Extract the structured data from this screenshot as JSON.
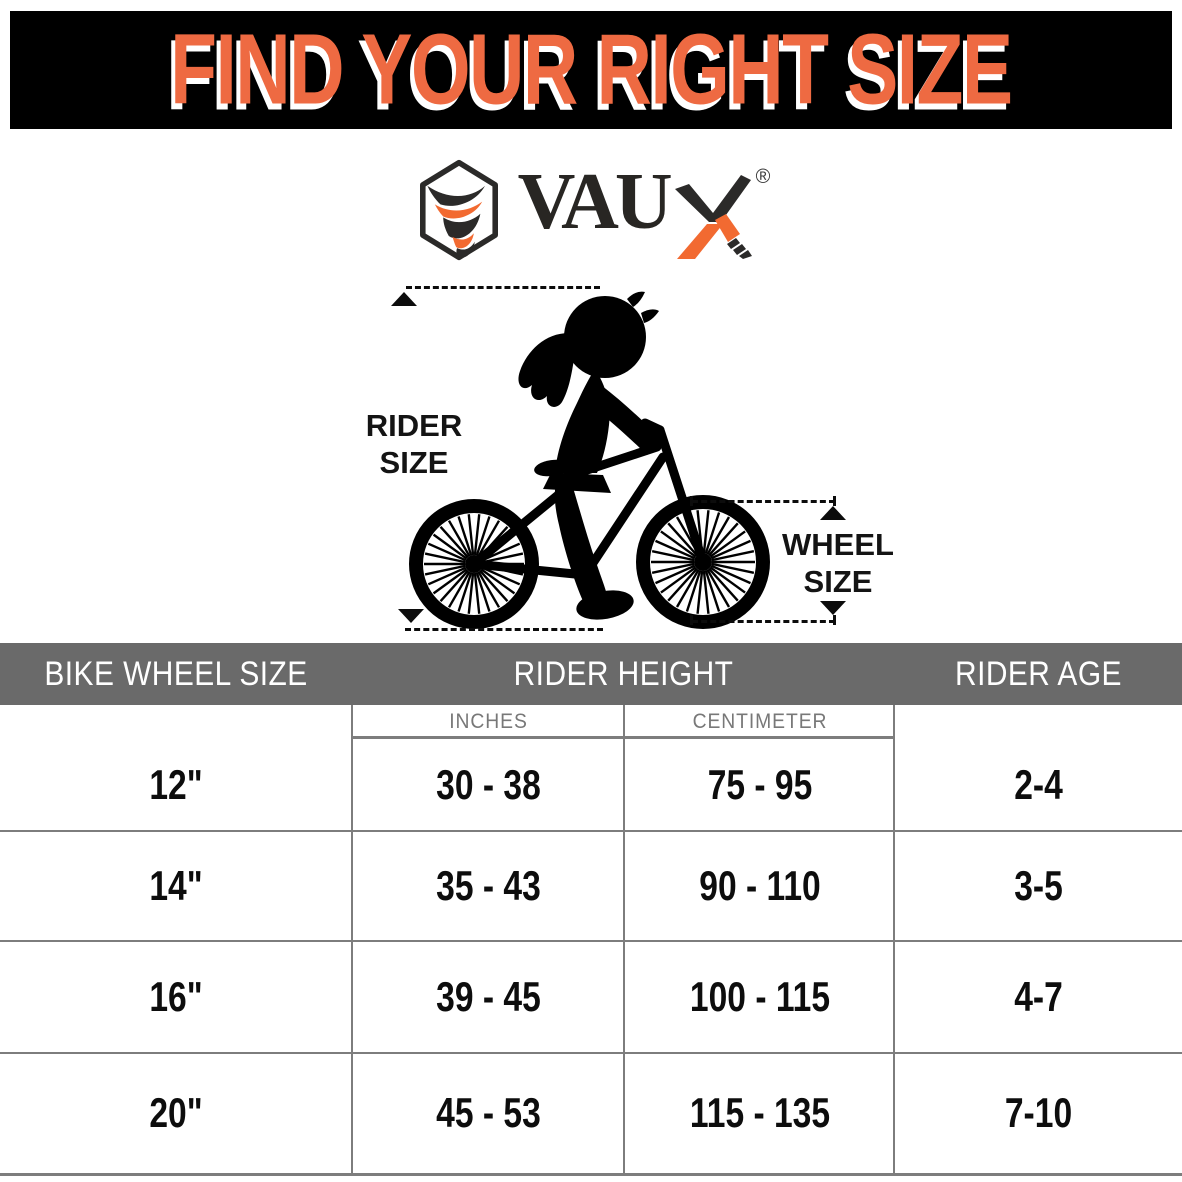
{
  "banner": {
    "title": "FIND YOUR RIGHT SIZE",
    "text_color": "#ee6a42",
    "background": "#000000"
  },
  "logo": {
    "name": "VAUX",
    "text_part": "VAU",
    "stylized_letter": "X",
    "registered_mark": "®",
    "orange": "#f26a31",
    "dark": "#2b2a29"
  },
  "diagram": {
    "rider_size_label": [
      "RIDER",
      "SIZE"
    ],
    "wheel_size_label": [
      "WHEEL",
      "SIZE"
    ]
  },
  "table": {
    "header_background": "#6a6a6a",
    "line_color": "#7d7d7d",
    "columns": [
      "BIKE WHEEL SIZE",
      "RIDER HEIGHT",
      "RIDER AGE"
    ],
    "subcolumns": [
      "INCHES",
      "CENTIMETER"
    ],
    "rows": [
      {
        "wheel_size": "12\"",
        "height_inches": "30 - 38",
        "height_cm": "75 - 95",
        "age": "2-4"
      },
      {
        "wheel_size": "14\"",
        "height_inches": "35 - 43",
        "height_cm": "90 - 110",
        "age": "3-5"
      },
      {
        "wheel_size": "16\"",
        "height_inches": "39 - 45",
        "height_cm": "100 - 115",
        "age": "4-7"
      },
      {
        "wheel_size": "20\"",
        "height_inches": "45 - 53",
        "height_cm": "115 - 135",
        "age": "7-10"
      }
    ]
  },
  "chart_data": {
    "type": "table",
    "title": "FIND YOUR RIGHT SIZE",
    "columns": [
      "BIKE WHEEL SIZE",
      "RIDER HEIGHT INCHES",
      "RIDER HEIGHT CENTIMETER",
      "RIDER AGE"
    ],
    "rows": [
      [
        "12\"",
        "30 - 38",
        "75 - 95",
        "2-4"
      ],
      [
        "14\"",
        "35 - 43",
        "90 - 110",
        "3-5"
      ],
      [
        "16\"",
        "39 - 45",
        "100 - 115",
        "4-7"
      ],
      [
        "20\"",
        "45 - 53",
        "115 - 135",
        "7-10"
      ]
    ]
  }
}
